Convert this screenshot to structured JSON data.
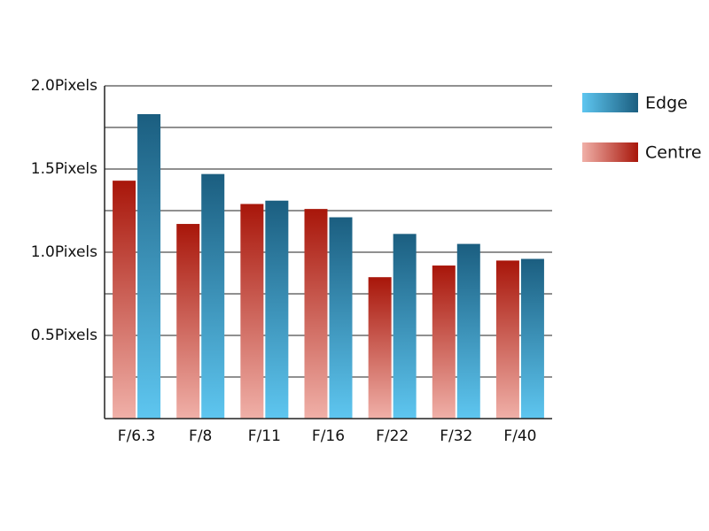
{
  "chart_data": {
    "type": "bar",
    "categories": [
      "F/6.3",
      "F/8",
      "F/11",
      "F/16",
      "F/22",
      "F/32",
      "F/40"
    ],
    "series": [
      {
        "name": "Centre",
        "color": "#a8160a",
        "gradient_color": "#f0b0a8",
        "values": [
          1.43,
          1.17,
          1.29,
          1.26,
          0.85,
          0.92,
          0.95
        ]
      },
      {
        "name": "Edge",
        "color": "#1b5e80",
        "gradient_color": "#5ec6f0",
        "values": [
          1.83,
          1.47,
          1.31,
          1.21,
          1.11,
          1.05,
          0.96
        ]
      }
    ],
    "ylim": [
      0,
      2.0
    ],
    "yticks": [
      {
        "value": 0.5,
        "label": "0.5Pixels"
      },
      {
        "value": 1.0,
        "label": "1.0Pixels"
      },
      {
        "value": 1.5,
        "label": "1.5Pixels"
      },
      {
        "value": 2.0,
        "label": "2.0Pixels"
      }
    ],
    "minor_gridlines": [
      0.25,
      0.75,
      1.25,
      1.75
    ],
    "grid": true,
    "legend": "right"
  }
}
